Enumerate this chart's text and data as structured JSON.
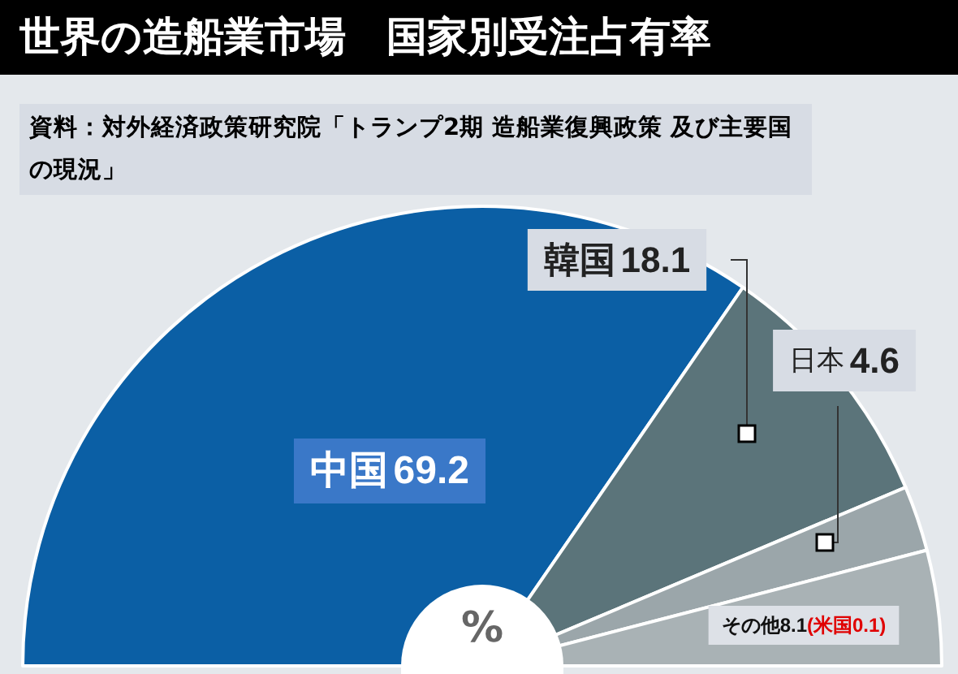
{
  "chart_data": {
    "type": "pie",
    "title": "世界の造船業市場　国家別受注占有率",
    "categories": [
      "中国",
      "韓国",
      "日本",
      "その他"
    ],
    "values": [
      69.2,
      18.1,
      4.6,
      8.1
    ],
    "colors": [
      "#0b5fa5",
      "#5b747a",
      "#9ba6aa",
      "#a9b2b5"
    ],
    "data_labels": true,
    "annotations": [
      "資料：対外経済政策研究院「トランプ2期 造船業復興政策 及び主要国の現況」",
      "%",
      "(米国0.1)"
    ]
  }
}
